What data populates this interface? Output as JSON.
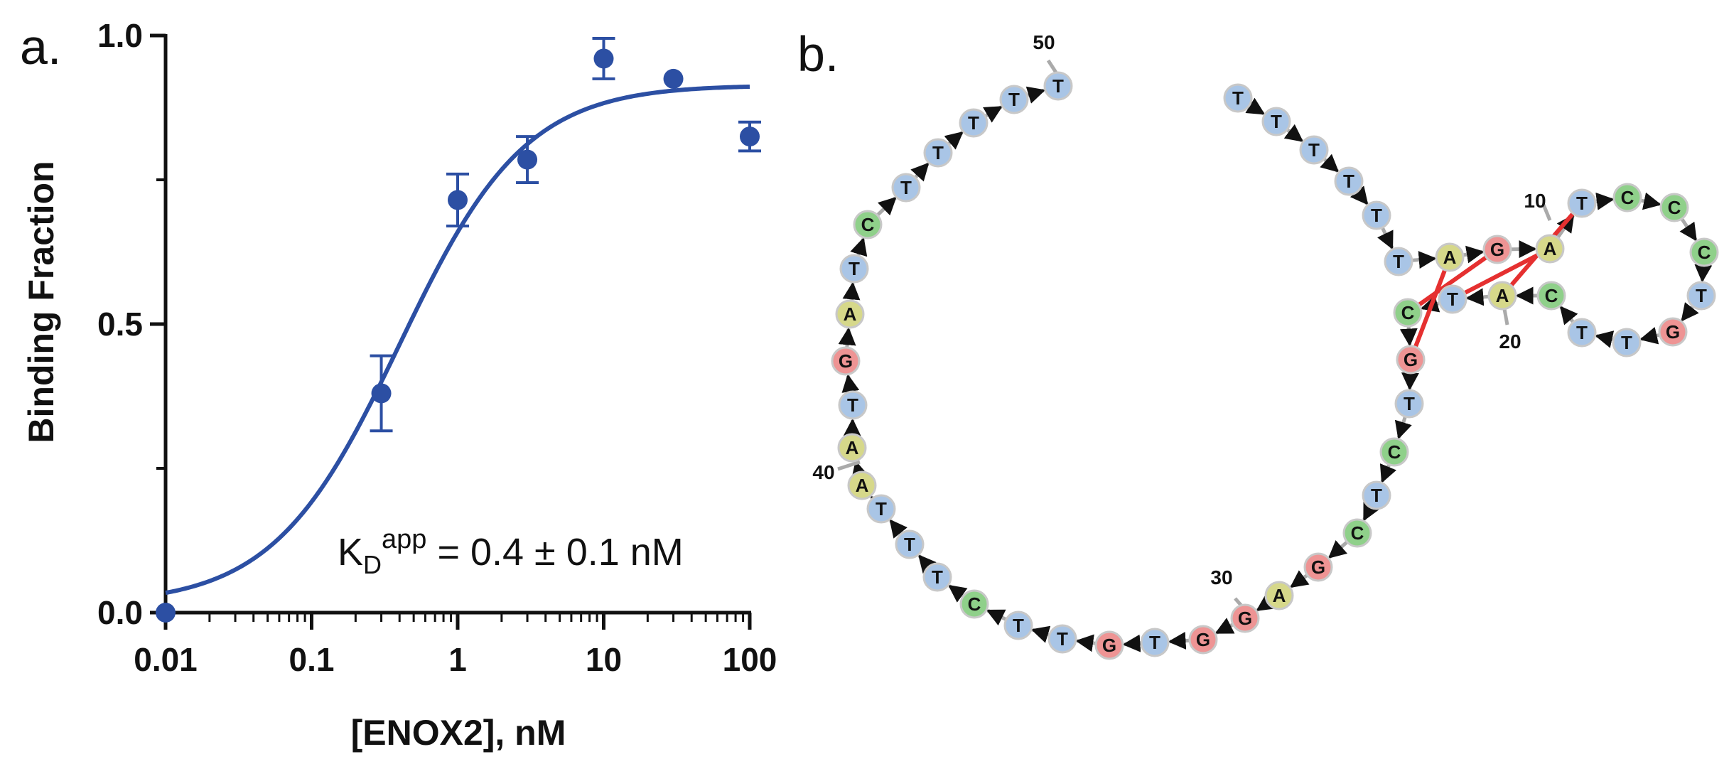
{
  "panels": {
    "a": "a.",
    "b": "b."
  },
  "chart_data": {
    "type": "scatter",
    "x_scale": "log",
    "xlabel": "[ENOX2], nM",
    "ylabel": "Binding Fraction",
    "xlim": [
      0.01,
      100
    ],
    "ylim": [
      0.0,
      1.0
    ],
    "x_ticks": [
      "0.01",
      "0.1",
      "1",
      "10",
      "100"
    ],
    "x_tick_values": [
      0.01,
      0.1,
      1,
      10,
      100
    ],
    "y_ticks": [
      "0.0",
      "0.5",
      "1.0"
    ],
    "y_tick_values": [
      0.0,
      0.5,
      1.0
    ],
    "y_minor_ticks": [
      0.25,
      0.75
    ],
    "series": [
      {
        "x": [
          0.01,
          0.3,
          1,
          3,
          10,
          30,
          100
        ],
        "y": [
          0.0,
          0.38,
          0.715,
          0.785,
          0.96,
          0.925,
          0.825
        ],
        "err": [
          0.0,
          0.065,
          0.045,
          0.04,
          0.035,
          0.0,
          0.025
        ]
      }
    ],
    "fit": {
      "model": "hill",
      "kd": 0.4,
      "bmax": 0.915,
      "hill": 1.0
    },
    "annotation": {
      "base": "K",
      "sub": "D",
      "sup": "app",
      "rest": " = 0.4 ± 0.1 nM"
    },
    "color": "#2c4fa3",
    "grid": false
  },
  "structure": {
    "colors": {
      "T": "#a9c5e6",
      "C": "#8fd08a",
      "G": "#ee9494",
      "A": "#d6d88a"
    },
    "pair_color": "#e53030",
    "position_labels": {
      "p10": "10",
      "p20": "20",
      "p30": "30",
      "p40": "40",
      "p50": "50"
    },
    "sequence": [
      "T",
      "T",
      "T",
      "T",
      "T",
      "T",
      "A",
      "G",
      "A",
      "T",
      "C",
      "C",
      "C",
      "T",
      "G",
      "T",
      "T",
      "C",
      "A",
      "T",
      "C",
      "G",
      "T",
      "C",
      "T",
      "C",
      "G",
      "A",
      "G",
      "G",
      "T",
      "G",
      "T",
      "T",
      "C",
      "T",
      "T",
      "T",
      "A",
      "A",
      "T",
      "G",
      "A",
      "T",
      "C",
      "T",
      "T",
      "T",
      "T",
      "T"
    ]
  }
}
